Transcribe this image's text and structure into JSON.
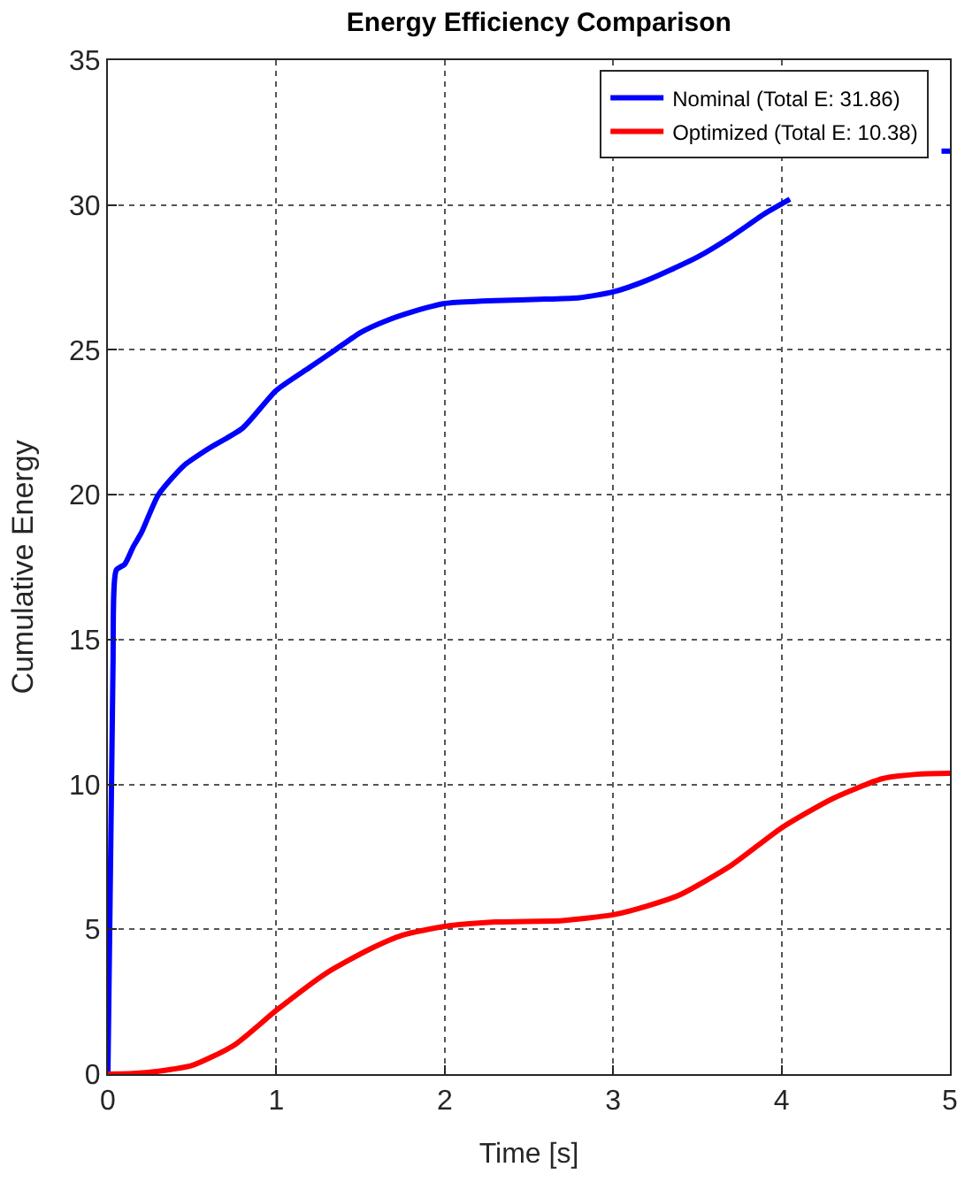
{
  "chart_data": {
    "type": "line",
    "title": "Energy Efficiency Comparison",
    "xlabel": "Time [s]",
    "ylabel": "Cumulative Energy",
    "xlim": [
      0,
      5
    ],
    "ylim": [
      0,
      35
    ],
    "xticks": [
      0,
      1,
      2,
      3,
      4,
      5
    ],
    "yticks": [
      0,
      5,
      10,
      15,
      20,
      25,
      30,
      35
    ],
    "grid": true,
    "legend": "top right",
    "line_style": "solid",
    "marker": "none",
    "series": [
      {
        "name": "Nominal (Total E: 31.86)",
        "color": "#0000ff",
        "x": [
          0,
          0.03,
          0.05,
          0.1,
          0.15,
          0.2,
          0.3,
          0.45,
          0.6,
          0.8,
          1.0,
          1.2,
          1.35,
          1.5,
          1.65,
          1.8,
          2.0,
          2.3,
          2.6,
          2.8,
          3.0,
          3.2,
          3.5,
          3.7,
          3.9,
          4.05,
          4.2,
          4.5,
          4.95,
          5.0
        ],
        "values": [
          0,
          14,
          17.4,
          17.6,
          18.2,
          18.7,
          20.0,
          21.0,
          21.6,
          22.3,
          23.6,
          24.4,
          25.0,
          25.6,
          26.0,
          26.3,
          26.6,
          26.7,
          26.75,
          26.8,
          27.0,
          27.4,
          28.2,
          28.9,
          29.7,
          30.2,
          null,
          null,
          31.86,
          31.86
        ]
      },
      {
        "name": "Optimized (Total E: 10.38)",
        "color": "#ff0000",
        "x": [
          0,
          0.15,
          0.3,
          0.5,
          0.75,
          1.0,
          1.3,
          1.55,
          1.75,
          2.0,
          2.3,
          2.7,
          3.0,
          3.2,
          3.4,
          3.7,
          4.0,
          4.3,
          4.6,
          4.8,
          5.0
        ],
        "values": [
          0,
          0.02,
          0.1,
          0.3,
          1.0,
          2.2,
          3.5,
          4.3,
          4.8,
          5.1,
          5.25,
          5.3,
          5.5,
          5.8,
          6.2,
          7.2,
          8.5,
          9.5,
          10.2,
          10.35,
          10.38
        ]
      }
    ]
  }
}
